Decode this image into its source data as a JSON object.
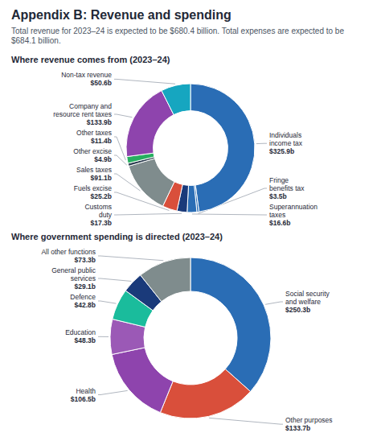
{
  "title": "Appendix B: Revenue and spending",
  "subtitle": "Total revenue for 2023–24 is expected to be $680.4 billion. Total expenses are expected to be $684.1 billion.",
  "chart_data": [
    {
      "type": "donut",
      "title": "Where revenue comes from (2023–24)",
      "categories": [
        "Individuals\nincome tax",
        "Fringe\nbenefits tax",
        "Superannuation\ntaxes",
        "Customs\nduty",
        "Fuels excise",
        "Sales taxes",
        "Other excise",
        "Other taxes",
        "Company and\nresource rent taxes",
        "Non-tax revenue"
      ],
      "values": [
        325.9,
        3.5,
        16.6,
        17.3,
        25.2,
        91.1,
        4.9,
        11.4,
        133.9,
        50.6
      ],
      "value_labels": [
        "$325.9b",
        "$3.5b",
        "$16.6b",
        "$17.3b",
        "$25.2b",
        "$91.1b",
        "$4.9b",
        "$11.4b",
        "$133.9b",
        "$50.6b"
      ],
      "colors": [
        "#2a6db5",
        "#2a6db5",
        "#2a6db5",
        "#1a3a7a",
        "#d94f3b",
        "#7f8c8d",
        "#2c3e50",
        "#27ae60",
        "#8e44ad",
        "#16a6c0"
      ],
      "data_labels": true
    },
    {
      "type": "donut",
      "title": "Where government spending is directed (2023–24)",
      "categories": [
        "Social security\nand welfare",
        "Other purposes",
        "Health",
        "Education",
        "Defence",
        "General public\nservices",
        "All other functions"
      ],
      "values": [
        250.3,
        133.7,
        106.5,
        48.3,
        42.8,
        29.1,
        73.3
      ],
      "value_labels": [
        "$250.3b",
        "$133.7b",
        "$106.5b",
        "$48.3b",
        "$42.8b",
        "$29.1b",
        "$73.3b"
      ],
      "colors": [
        "#2a6db5",
        "#d94f3b",
        "#8e44ad",
        "#9b59b6",
        "#1abc9c",
        "#1a3a7a",
        "#7f8c8d"
      ],
      "data_labels": true
    }
  ]
}
